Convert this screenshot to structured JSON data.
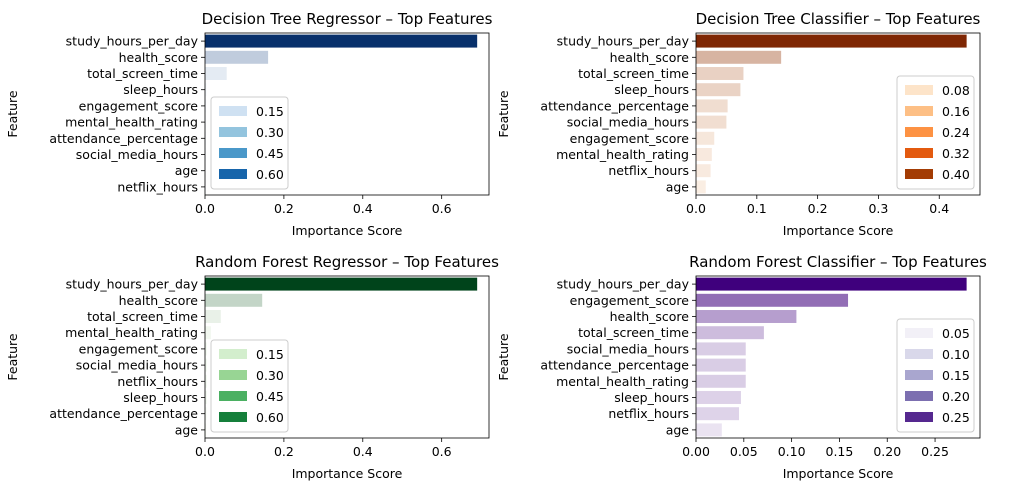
{
  "chart_data": [
    {
      "type": "bar",
      "orientation": "horizontal",
      "title": "Decision Tree Regressor – Top Features",
      "xlabel": "Importance Score",
      "ylabel": "Feature",
      "xlim": [
        0,
        0.72
      ],
      "xticks": [
        0.0,
        0.2,
        0.4,
        0.6
      ],
      "xtick_labels": [
        "0.0",
        "0.2",
        "0.4",
        "0.6"
      ],
      "categories": [
        "study_hours_per_day",
        "health_score",
        "total_screen_time",
        "sleep_hours",
        "engagement_score",
        "mental_health_rating",
        "attendance_percentage",
        "social_media_hours",
        "age",
        "netflix_hours"
      ],
      "values": [
        0.69,
        0.16,
        0.055,
        0.004,
        0.003,
        0.002,
        0.002,
        0.002,
        0.001,
        0.001
      ],
      "colormap": [
        "#f7fbff",
        "#08306b"
      ],
      "legend": {
        "position": "lower-left",
        "entries": [
          "0.15",
          "0.30",
          "0.45",
          "0.60"
        ],
        "colors": [
          "#cfe1f2",
          "#93c4de",
          "#4a98c9",
          "#1765ab"
        ]
      }
    },
    {
      "type": "bar",
      "orientation": "horizontal",
      "title": "Decision Tree Classifier – Top Features",
      "xlabel": "Importance Score",
      "ylabel": "Feature",
      "xlim": [
        0,
        0.467
      ],
      "xticks": [
        0.0,
        0.1,
        0.2,
        0.3,
        0.4
      ],
      "xtick_labels": [
        "0.0",
        "0.1",
        "0.2",
        "0.3",
        "0.4"
      ],
      "categories": [
        "study_hours_per_day",
        "health_score",
        "total_screen_time",
        "sleep_hours",
        "attendance_percentage",
        "social_media_hours",
        "engagement_score",
        "mental_health_rating",
        "netflix_hours",
        "age"
      ],
      "values": [
        0.445,
        0.14,
        0.078,
        0.073,
        0.052,
        0.05,
        0.03,
        0.026,
        0.024,
        0.016
      ],
      "colormap": [
        "#fff5eb",
        "#7f2704"
      ],
      "legend": {
        "position": "lower-right",
        "entries": [
          "0.08",
          "0.16",
          "0.24",
          "0.32",
          "0.40"
        ],
        "colors": [
          "#fde4c9",
          "#fdbf85",
          "#fd9243",
          "#e35a0f",
          "#a33c04"
        ]
      }
    },
    {
      "type": "bar",
      "orientation": "horizontal",
      "title": "Random Forest Regressor – Top Features",
      "xlabel": "Importance Score",
      "ylabel": "Feature",
      "xlim": [
        0,
        0.72
      ],
      "xticks": [
        0.0,
        0.2,
        0.4,
        0.6
      ],
      "xtick_labels": [
        "0.0",
        "0.2",
        "0.4",
        "0.6"
      ],
      "categories": [
        "study_hours_per_day",
        "health_score",
        "total_screen_time",
        "mental_health_rating",
        "engagement_score",
        "social_media_hours",
        "netflix_hours",
        "sleep_hours",
        "attendance_percentage",
        "age"
      ],
      "values": [
        0.69,
        0.145,
        0.04,
        0.015,
        0.005,
        0.005,
        0.005,
        0.005,
        0.004,
        0.003
      ],
      "colormap": [
        "#f7fcf5",
        "#00441b"
      ],
      "legend": {
        "position": "lower-left",
        "entries": [
          "0.15",
          "0.30",
          "0.45",
          "0.60"
        ],
        "colors": [
          "#d3eecd",
          "#98d594",
          "#4bb062",
          "#157f3b"
        ]
      }
    },
    {
      "type": "bar",
      "orientation": "horizontal",
      "title": "Random Forest Classifier – Top Features",
      "xlabel": "Importance Score",
      "ylabel": "Feature",
      "xlim": [
        0,
        0.297
      ],
      "xticks": [
        0.0,
        0.05,
        0.1,
        0.15,
        0.2,
        0.25
      ],
      "xtick_labels": [
        "0.00",
        "0.05",
        "0.10",
        "0.15",
        "0.20",
        "0.25"
      ],
      "categories": [
        "study_hours_per_day",
        "engagement_score",
        "health_score",
        "total_screen_time",
        "social_media_hours",
        "attendance_percentage",
        "mental_health_rating",
        "sleep_hours",
        "netflix_hours",
        "age"
      ],
      "values": [
        0.283,
        0.159,
        0.105,
        0.071,
        0.052,
        0.052,
        0.052,
        0.047,
        0.045,
        0.027
      ],
      "colormap": [
        "#fcfbfd",
        "#3f007d"
      ],
      "legend": {
        "position": "lower-right",
        "entries": [
          "0.05",
          "0.10",
          "0.15",
          "0.20",
          "0.25"
        ],
        "colors": [
          "#f2f0f7",
          "#d9d8ea",
          "#a9a6cf",
          "#7c6fb0",
          "#55288f"
        ]
      }
    }
  ]
}
